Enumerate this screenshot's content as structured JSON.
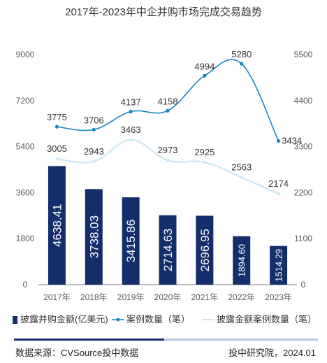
{
  "chart_data": {
    "type": "bar",
    "title": "2017年-2023年中企并购市场完成交易趋势",
    "categories": [
      "2017年",
      "2018年",
      "2019年",
      "2020年",
      "2021年",
      "2022年",
      "2023年"
    ],
    "y_left": {
      "range": [
        0,
        9000
      ],
      "ticks": [
        "0",
        "1800",
        "3600",
        "5400",
        "7200",
        "9000"
      ]
    },
    "y_right": {
      "range": [
        0,
        5500
      ],
      "ticks": [
        "0",
        "1100",
        "2200",
        "3300",
        "4400",
        "5500"
      ]
    },
    "series": [
      {
        "name": "披露并购金额(亿美元)",
        "type": "bar",
        "axis": "left",
        "color": "#142d6b",
        "values": [
          4638.41,
          3738.03,
          3415.86,
          2714.63,
          2696.95,
          1894.6,
          1514.29
        ],
        "labels": [
          "4638.41",
          "3738.03",
          "3415.86",
          "2714.63",
          "2696.95",
          "1894.60",
          "1514.29"
        ]
      },
      {
        "name": "案例数量（笔）",
        "type": "line",
        "axis": "right",
        "color": "#1b86c2",
        "values": [
          3775,
          3706,
          4137,
          4158,
          4994,
          5280,
          3434
        ],
        "labels": [
          "3775",
          "3706",
          "4137",
          "4158",
          "4994",
          "5280",
          "3434"
        ]
      },
      {
        "name": "披露金额案例数量（笔）",
        "type": "line",
        "axis": "right",
        "color": "#cfe8f6",
        "values": [
          3005,
          2943,
          3463,
          2973,
          2925,
          2563,
          2174
        ],
        "labels": [
          "3005",
          "2943",
          "3463",
          "2973",
          "2925",
          "2563",
          "2174"
        ]
      }
    ],
    "legend_position": "bottom",
    "grid": false
  },
  "footer": {
    "source": "数据来源：CVSource投中数据",
    "credit": "投中研究院，2024.01"
  }
}
